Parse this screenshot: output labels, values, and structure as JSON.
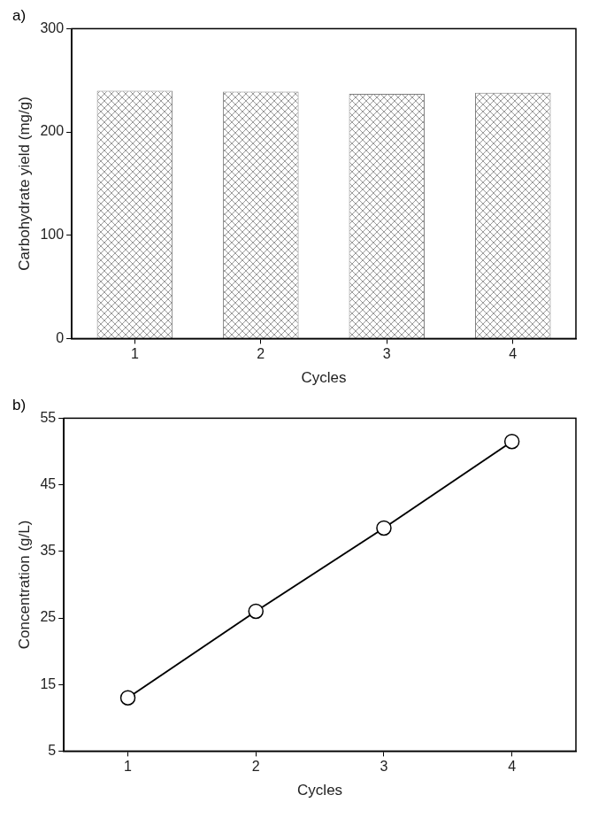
{
  "chart_data": [
    {
      "type": "bar",
      "title": "a)",
      "x_label": "Cycles",
      "y_label": "Carbohydrate yield (mg/g)",
      "categories": [
        "1",
        "2",
        "3",
        "4"
      ],
      "values": [
        240,
        239,
        237,
        238
      ],
      "color": "#808080",
      "ylim": [
        0,
        300
      ],
      "yticks": [
        0,
        100,
        200,
        300
      ],
      "grid": false
    },
    {
      "type": "line",
      "title": "b)",
      "x_label": "Cycles",
      "y_label": "Concentration (g/L)",
      "categories": [
        "1",
        "2",
        "3",
        "4"
      ],
      "values": [
        13,
        26,
        38.5,
        51.5
      ],
      "color": "#000000",
      "marker": "circle",
      "line_style": "solid",
      "ylim": [
        5,
        55
      ],
      "yticks": [
        5,
        15,
        25,
        35,
        45,
        55
      ],
      "grid": false
    }
  ]
}
